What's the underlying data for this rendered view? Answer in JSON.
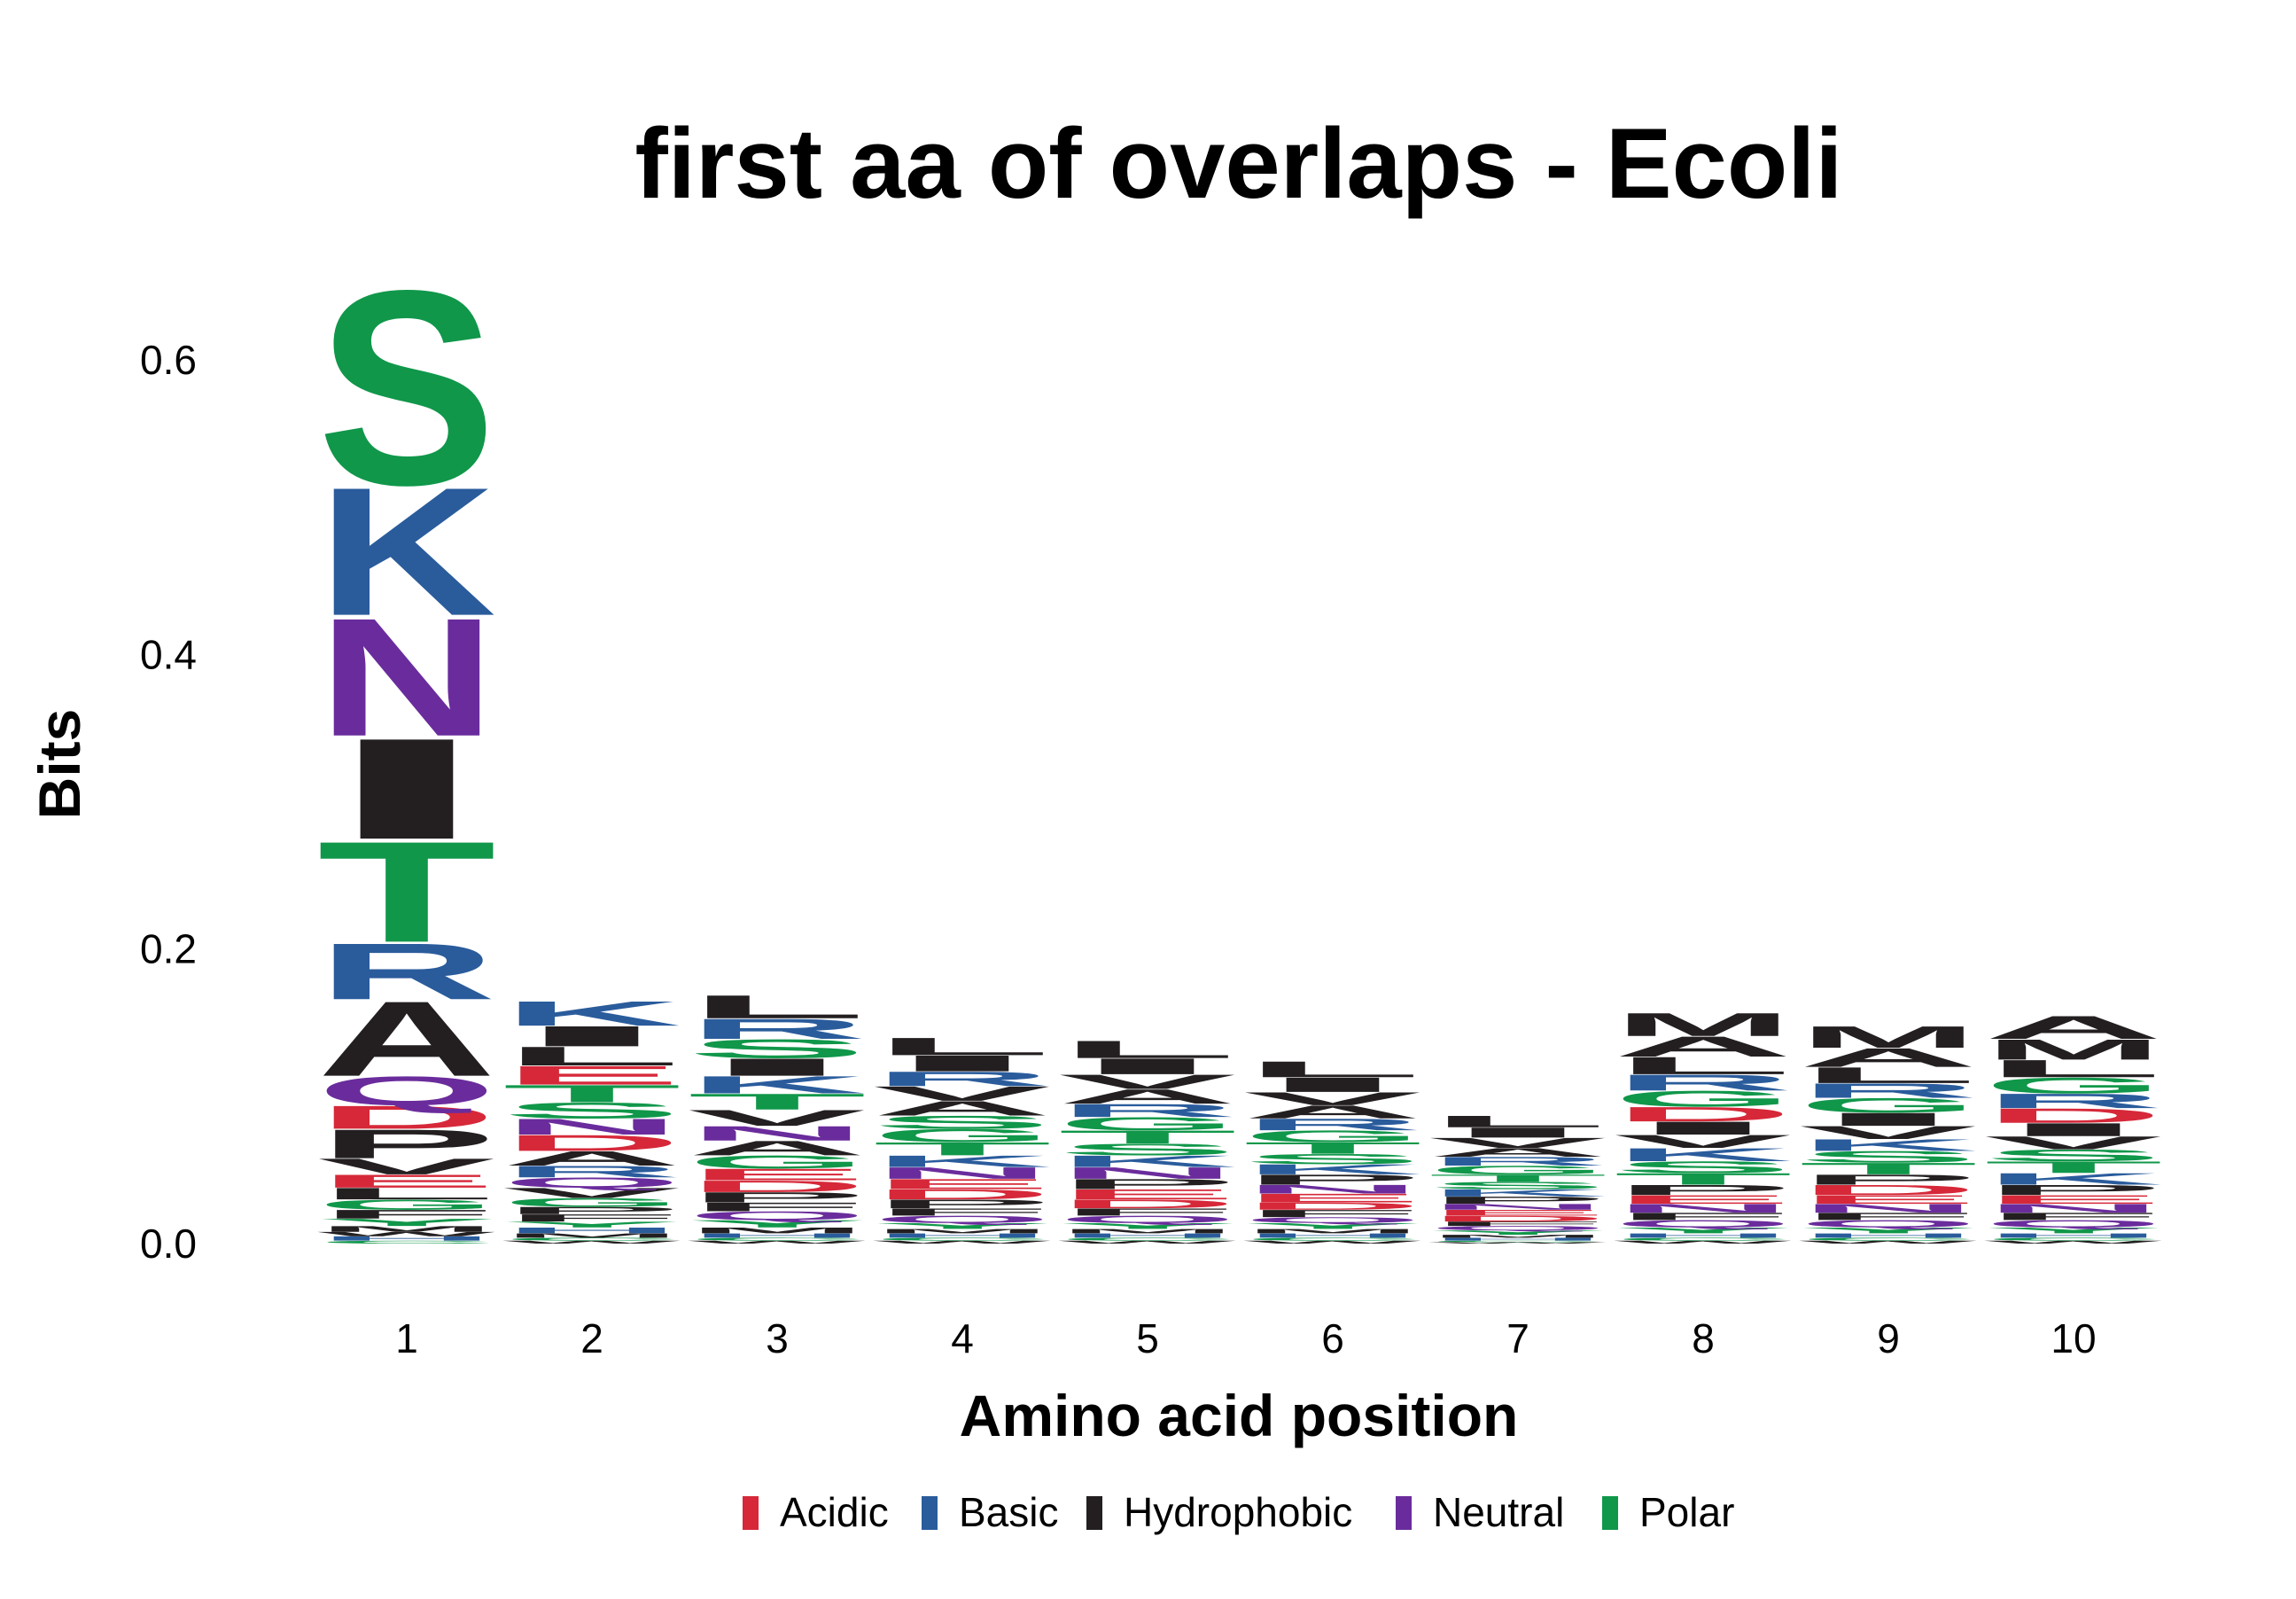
{
  "chart_data": {
    "type": "sequence-logo",
    "title": "first aa of overlaps - Ecoli",
    "xlabel": "Amino acid position",
    "ylabel": "Bits",
    "ylim": [
      0,
      0.7
    ],
    "y_ticks": [
      "0.0",
      "0.2",
      "0.4",
      "0.6"
    ],
    "y_tick_values": [
      0,
      0.2,
      0.4,
      0.6
    ],
    "x": [
      "1",
      "2",
      "3",
      "4",
      "5",
      "6",
      "7",
      "8",
      "9",
      "10"
    ],
    "groups": [
      {
        "name": "Acidic",
        "color": "#d62839"
      },
      {
        "name": "Basic",
        "color": "#2a5c9c"
      },
      {
        "name": "Hydrophobic",
        "color": "#231f20"
      },
      {
        "name": "Neutral",
        "color": "#6a2c9c"
      },
      {
        "name": "Polar",
        "color": "#10974a"
      }
    ],
    "residue_group": {
      "D": "Acidic",
      "E": "Acidic",
      "K": "Basic",
      "R": "Basic",
      "H": "Basic",
      "A": "Hydrophobic",
      "I": "Hydrophobic",
      "L": "Hydrophobic",
      "M": "Hydrophobic",
      "F": "Hydrophobic",
      "W": "Hydrophobic",
      "P": "Hydrophobic",
      "V": "Hydrophobic",
      "N": "Neutral",
      "Q": "Neutral",
      "S": "Polar",
      "T": "Polar",
      "G": "Polar",
      "C": "Polar",
      "Y": "Polar"
    },
    "positions": [
      {
        "position": "1",
        "stack": [
          {
            "aa": "C",
            "bits": 0.002
          },
          {
            "aa": "H",
            "bits": 0.003
          },
          {
            "aa": "W",
            "bits": 0.003
          },
          {
            "aa": "M",
            "bits": 0.004
          },
          {
            "aa": "Y",
            "bits": 0.005
          },
          {
            "aa": "F",
            "bits": 0.006
          },
          {
            "aa": "G",
            "bits": 0.007
          },
          {
            "aa": "L",
            "bits": 0.008
          },
          {
            "aa": "E",
            "bits": 0.009
          },
          {
            "aa": "V",
            "bits": 0.011
          },
          {
            "aa": "P",
            "bits": 0.02
          },
          {
            "aa": "D",
            "bits": 0.016
          },
          {
            "aa": "Q",
            "bits": 0.02
          },
          {
            "aa": "A",
            "bits": 0.052
          },
          {
            "aa": "R",
            "bits": 0.039
          },
          {
            "aa": "T",
            "bits": 0.07
          },
          {
            "aa": "I",
            "bits": 0.07
          },
          {
            "aa": "N",
            "bits": 0.082
          },
          {
            "aa": "K",
            "bits": 0.089
          },
          {
            "aa": "S",
            "bits": 0.135
          }
        ]
      },
      {
        "position": "2",
        "stack": [
          {
            "aa": "W",
            "bits": 0.002
          },
          {
            "aa": "C",
            "bits": 0.002
          },
          {
            "aa": "M",
            "bits": 0.003
          },
          {
            "aa": "H",
            "bits": 0.004
          },
          {
            "aa": "Y",
            "bits": 0.004
          },
          {
            "aa": "F",
            "bits": 0.005
          },
          {
            "aa": "P",
            "bits": 0.005
          },
          {
            "aa": "G",
            "bits": 0.006
          },
          {
            "aa": "V",
            "bits": 0.007
          },
          {
            "aa": "Q",
            "bits": 0.007
          },
          {
            "aa": "R",
            "bits": 0.008
          },
          {
            "aa": "A",
            "bits": 0.01
          },
          {
            "aa": "D",
            "bits": 0.011
          },
          {
            "aa": "N",
            "bits": 0.011
          },
          {
            "aa": "S",
            "bits": 0.011
          },
          {
            "aa": "T",
            "bits": 0.012
          },
          {
            "aa": "E",
            "bits": 0.013
          },
          {
            "aa": "L",
            "bits": 0.013
          },
          {
            "aa": "I",
            "bits": 0.014
          },
          {
            "aa": "K",
            "bits": 0.017
          }
        ]
      },
      {
        "position": "3",
        "stack": [
          {
            "aa": "W",
            "bits": 0.002
          },
          {
            "aa": "C",
            "bits": 0.002
          },
          {
            "aa": "H",
            "bits": 0.003
          },
          {
            "aa": "M",
            "bits": 0.004
          },
          {
            "aa": "Y",
            "bits": 0.005
          },
          {
            "aa": "Q",
            "bits": 0.006
          },
          {
            "aa": "F",
            "bits": 0.006
          },
          {
            "aa": "P",
            "bits": 0.007
          },
          {
            "aa": "D",
            "bits": 0.008
          },
          {
            "aa": "E",
            "bits": 0.008
          },
          {
            "aa": "G",
            "bits": 0.009
          },
          {
            "aa": "A",
            "bits": 0.01
          },
          {
            "aa": "N",
            "bits": 0.01
          },
          {
            "aa": "V",
            "bits": 0.011
          },
          {
            "aa": "T",
            "bits": 0.011
          },
          {
            "aa": "K",
            "bits": 0.012
          },
          {
            "aa": "I",
            "bits": 0.012
          },
          {
            "aa": "S",
            "bits": 0.013
          },
          {
            "aa": "R",
            "bits": 0.014
          },
          {
            "aa": "L",
            "bits": 0.016
          }
        ]
      },
      {
        "position": "4",
        "stack": [
          {
            "aa": "W",
            "bits": 0.002
          },
          {
            "aa": "C",
            "bits": 0.002
          },
          {
            "aa": "H",
            "bits": 0.003
          },
          {
            "aa": "M",
            "bits": 0.003
          },
          {
            "aa": "Y",
            "bits": 0.004
          },
          {
            "aa": "Q",
            "bits": 0.005
          },
          {
            "aa": "F",
            "bits": 0.005
          },
          {
            "aa": "P",
            "bits": 0.006
          },
          {
            "aa": "D",
            "bits": 0.007
          },
          {
            "aa": "E",
            "bits": 0.007
          },
          {
            "aa": "N",
            "bits": 0.008
          },
          {
            "aa": "K",
            "bits": 0.008
          },
          {
            "aa": "T",
            "bits": 0.009
          },
          {
            "aa": "G",
            "bits": 0.009
          },
          {
            "aa": "S",
            "bits": 0.009
          },
          {
            "aa": "A",
            "bits": 0.01
          },
          {
            "aa": "V",
            "bits": 0.01
          },
          {
            "aa": "R",
            "bits": 0.01
          },
          {
            "aa": "I",
            "bits": 0.011
          },
          {
            "aa": "L",
            "bits": 0.012
          }
        ]
      },
      {
        "position": "5",
        "stack": [
          {
            "aa": "W",
            "bits": 0.002
          },
          {
            "aa": "C",
            "bits": 0.002
          },
          {
            "aa": "H",
            "bits": 0.003
          },
          {
            "aa": "M",
            "bits": 0.003
          },
          {
            "aa": "Y",
            "bits": 0.004
          },
          {
            "aa": "Q",
            "bits": 0.005
          },
          {
            "aa": "F",
            "bits": 0.005
          },
          {
            "aa": "D",
            "bits": 0.006
          },
          {
            "aa": "E",
            "bits": 0.007
          },
          {
            "aa": "P",
            "bits": 0.007
          },
          {
            "aa": "N",
            "bits": 0.008
          },
          {
            "aa": "K",
            "bits": 0.008
          },
          {
            "aa": "S",
            "bits": 0.008
          },
          {
            "aa": "T",
            "bits": 0.009
          },
          {
            "aa": "G",
            "bits": 0.009
          },
          {
            "aa": "R",
            "bits": 0.009
          },
          {
            "aa": "A",
            "bits": 0.01
          },
          {
            "aa": "V",
            "bits": 0.01
          },
          {
            "aa": "I",
            "bits": 0.011
          },
          {
            "aa": "L",
            "bits": 0.012
          }
        ]
      },
      {
        "position": "6",
        "stack": [
          {
            "aa": "W",
            "bits": 0.002
          },
          {
            "aa": "C",
            "bits": 0.002
          },
          {
            "aa": "H",
            "bits": 0.003
          },
          {
            "aa": "M",
            "bits": 0.003
          },
          {
            "aa": "Y",
            "bits": 0.004
          },
          {
            "aa": "Q",
            "bits": 0.004
          },
          {
            "aa": "F",
            "bits": 0.005
          },
          {
            "aa": "D",
            "bits": 0.005
          },
          {
            "aa": "E",
            "bits": 0.006
          },
          {
            "aa": "N",
            "bits": 0.006
          },
          {
            "aa": "P",
            "bits": 0.007
          },
          {
            "aa": "K",
            "bits": 0.007
          },
          {
            "aa": "S",
            "bits": 0.007
          },
          {
            "aa": "T",
            "bits": 0.008
          },
          {
            "aa": "G",
            "bits": 0.008
          },
          {
            "aa": "R",
            "bits": 0.008
          },
          {
            "aa": "A",
            "bits": 0.009
          },
          {
            "aa": "V",
            "bits": 0.009
          },
          {
            "aa": "I",
            "bits": 0.01
          },
          {
            "aa": "L",
            "bits": 0.011
          }
        ]
      },
      {
        "position": "7",
        "stack": [
          {
            "aa": "W",
            "bits": 0.001
          },
          {
            "aa": "C",
            "bits": 0.001
          },
          {
            "aa": "H",
            "bits": 0.002
          },
          {
            "aa": "M",
            "bits": 0.002
          },
          {
            "aa": "Y",
            "bits": 0.003
          },
          {
            "aa": "Q",
            "bits": 0.003
          },
          {
            "aa": "F",
            "bits": 0.003
          },
          {
            "aa": "D",
            "bits": 0.004
          },
          {
            "aa": "E",
            "bits": 0.004
          },
          {
            "aa": "N",
            "bits": 0.004
          },
          {
            "aa": "P",
            "bits": 0.005
          },
          {
            "aa": "K",
            "bits": 0.005
          },
          {
            "aa": "S",
            "bits": 0.005
          },
          {
            "aa": "T",
            "bits": 0.005
          },
          {
            "aa": "G",
            "bits": 0.006
          },
          {
            "aa": "R",
            "bits": 0.006
          },
          {
            "aa": "A",
            "bits": 0.006
          },
          {
            "aa": "V",
            "bits": 0.007
          },
          {
            "aa": "I",
            "bits": 0.007
          },
          {
            "aa": "L",
            "bits": 0.008
          }
        ]
      },
      {
        "position": "8",
        "stack": [
          {
            "aa": "W",
            "bits": 0.002
          },
          {
            "aa": "C",
            "bits": 0.002
          },
          {
            "aa": "H",
            "bits": 0.003
          },
          {
            "aa": "Y",
            "bits": 0.004
          },
          {
            "aa": "Q",
            "bits": 0.005
          },
          {
            "aa": "F",
            "bits": 0.005
          },
          {
            "aa": "N",
            "bits": 0.006
          },
          {
            "aa": "E",
            "bits": 0.006
          },
          {
            "aa": "P",
            "bits": 0.007
          },
          {
            "aa": "T",
            "bits": 0.008
          },
          {
            "aa": "S",
            "bits": 0.008
          },
          {
            "aa": "K",
            "bits": 0.009
          },
          {
            "aa": "V",
            "bits": 0.009
          },
          {
            "aa": "I",
            "bits": 0.009
          },
          {
            "aa": "D",
            "bits": 0.01
          },
          {
            "aa": "G",
            "bits": 0.011
          },
          {
            "aa": "R",
            "bits": 0.011
          },
          {
            "aa": "L",
            "bits": 0.012
          },
          {
            "aa": "A",
            "bits": 0.014
          },
          {
            "aa": "M",
            "bits": 0.016
          }
        ]
      },
      {
        "position": "9",
        "stack": [
          {
            "aa": "W",
            "bits": 0.002
          },
          {
            "aa": "C",
            "bits": 0.002
          },
          {
            "aa": "H",
            "bits": 0.003
          },
          {
            "aa": "Y",
            "bits": 0.004
          },
          {
            "aa": "Q",
            "bits": 0.005
          },
          {
            "aa": "F",
            "bits": 0.005
          },
          {
            "aa": "N",
            "bits": 0.006
          },
          {
            "aa": "E",
            "bits": 0.006
          },
          {
            "aa": "D",
            "bits": 0.007
          },
          {
            "aa": "P",
            "bits": 0.007
          },
          {
            "aa": "T",
            "bits": 0.008
          },
          {
            "aa": "S",
            "bits": 0.008
          },
          {
            "aa": "K",
            "bits": 0.008
          },
          {
            "aa": "V",
            "bits": 0.009
          },
          {
            "aa": "I",
            "bits": 0.009
          },
          {
            "aa": "G",
            "bits": 0.01
          },
          {
            "aa": "R",
            "bits": 0.01
          },
          {
            "aa": "L",
            "bits": 0.011
          },
          {
            "aa": "A",
            "bits": 0.013
          },
          {
            "aa": "M",
            "bits": 0.015
          }
        ]
      },
      {
        "position": "10",
        "stack": [
          {
            "aa": "W",
            "bits": 0.002
          },
          {
            "aa": "C",
            "bits": 0.002
          },
          {
            "aa": "H",
            "bits": 0.003
          },
          {
            "aa": "Y",
            "bits": 0.004
          },
          {
            "aa": "Q",
            "bits": 0.005
          },
          {
            "aa": "F",
            "bits": 0.005
          },
          {
            "aa": "N",
            "bits": 0.006
          },
          {
            "aa": "E",
            "bits": 0.006
          },
          {
            "aa": "P",
            "bits": 0.007
          },
          {
            "aa": "K",
            "bits": 0.008
          },
          {
            "aa": "T",
            "bits": 0.008
          },
          {
            "aa": "S",
            "bits": 0.008
          },
          {
            "aa": "V",
            "bits": 0.009
          },
          {
            "aa": "I",
            "bits": 0.009
          },
          {
            "aa": "D",
            "bits": 0.01
          },
          {
            "aa": "R",
            "bits": 0.01
          },
          {
            "aa": "G",
            "bits": 0.011
          },
          {
            "aa": "L",
            "bits": 0.012
          },
          {
            "aa": "M",
            "bits": 0.014
          },
          {
            "aa": "A",
            "bits": 0.016
          }
        ]
      }
    ],
    "grid": false,
    "legend_placement": "bottom"
  }
}
